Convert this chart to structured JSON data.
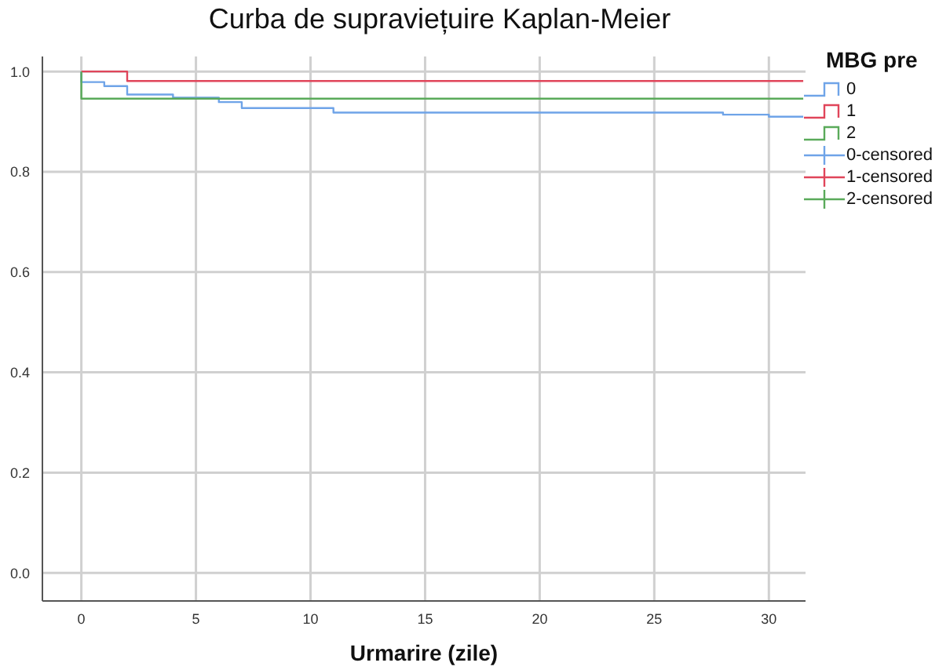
{
  "chart_data": {
    "type": "step",
    "title": "Curba de supraviețuire Kaplan-Meier",
    "xlabel": "Urmarire (zile)",
    "legend_title": "MBG pre",
    "legend": "right",
    "grid": true,
    "xlim": [
      -1.7,
      31.6
    ],
    "xticks": [
      0,
      5,
      10,
      15,
      20,
      25,
      30
    ],
    "ylim": [
      -0.056,
      1.03
    ],
    "yticks": [
      {
        "value": 0,
        "label": "0.0"
      },
      {
        "value": 0.2,
        "label": "0.2"
      },
      {
        "value": 0.4,
        "label": "0.4"
      },
      {
        "value": 0.6,
        "label": "0.6"
      },
      {
        "value": 0.8,
        "label": "0.8"
      },
      {
        "value": 1,
        "label": "1.0"
      }
    ],
    "series": [
      {
        "name": "0",
        "color": "#6fa4e8",
        "x": [
          0,
          0,
          1,
          2,
          4,
          6,
          7,
          11,
          28,
          30,
          31.5
        ],
        "values": [
          1,
          0.979,
          0.971,
          0.954,
          0.948,
          0.939,
          0.927,
          0.918,
          0.914,
          0.91,
          0.91
        ]
      },
      {
        "name": "1",
        "color": "#e0455a",
        "x": [
          0,
          2,
          31.5
        ],
        "values": [
          1,
          0.981,
          0.981
        ]
      },
      {
        "name": "2",
        "color": "#5aaa5a",
        "x": [
          0,
          0,
          31.5
        ],
        "values": [
          1,
          0.946,
          0.946
        ]
      },
      {
        "name": "0-censored",
        "type": "scatter",
        "color": "#6fa4e8"
      },
      {
        "name": "1-censored",
        "type": "scatter",
        "color": "#e0455a"
      },
      {
        "name": "2-censored",
        "type": "scatter",
        "color": "#5aaa5a"
      }
    ]
  }
}
